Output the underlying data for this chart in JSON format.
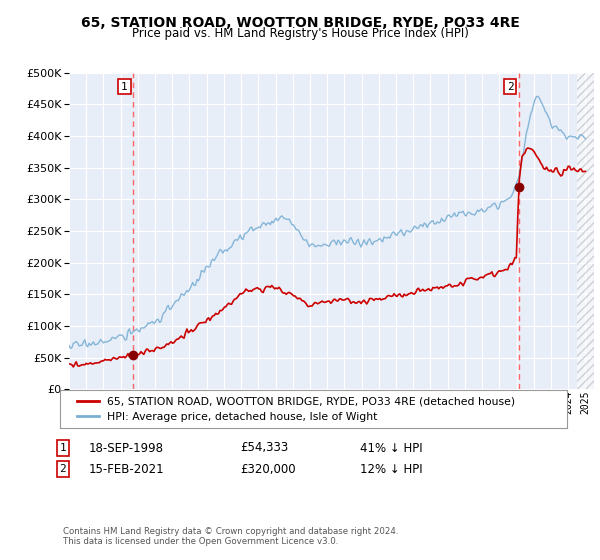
{
  "title": "65, STATION ROAD, WOOTTON BRIDGE, RYDE, PO33 4RE",
  "subtitle": "Price paid vs. HM Land Registry's House Price Index (HPI)",
  "legend_line1": "65, STATION ROAD, WOOTTON BRIDGE, RYDE, PO33 4RE (detached house)",
  "legend_line2": "HPI: Average price, detached house, Isle of Wight",
  "annotation1_label": "1",
  "annotation1_date": "18-SEP-1998",
  "annotation1_price": "£54,333",
  "annotation1_hpi": "41% ↓ HPI",
  "annotation2_label": "2",
  "annotation2_date": "15-FEB-2021",
  "annotation2_price": "£320,000",
  "annotation2_hpi": "12% ↓ HPI",
  "footer": "Contains HM Land Registry data © Crown copyright and database right 2024.\nThis data is licensed under the Open Government Licence v3.0.",
  "ylim": [
    0,
    500000
  ],
  "yticks": [
    0,
    50000,
    100000,
    150000,
    200000,
    250000,
    300000,
    350000,
    400000,
    450000,
    500000
  ],
  "bg_color": "#e8eef8",
  "hpi_color": "#7aafd4",
  "price_color": "#cc0000",
  "vline_color": "#ff6666",
  "marker_color": "#880000",
  "grid_color": "#ffffff",
  "annotation_box_color": "#cc0000",
  "point1_x": 1998.72,
  "point1_y": 54333,
  "point2_x": 2021.12,
  "point2_y": 320000,
  "xmin": 1995,
  "xmax": 2025.5
}
